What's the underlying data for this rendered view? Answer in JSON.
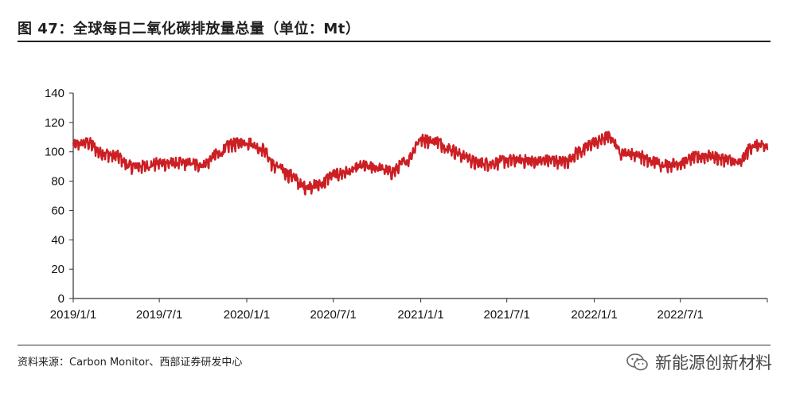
{
  "title": "图 47：全球每日二氧化碳排放量总量（单位：Mt）",
  "source": "资料来源：Carbon Monitor、西部证券研发中心",
  "watermark": {
    "text": "新能源创新材料",
    "icon": "wechat-icon"
  },
  "colors": {
    "series": "#cc1f24",
    "axis": "#333333"
  },
  "chart_data": {
    "type": "line",
    "title": "",
    "xlabel": "",
    "ylabel": "",
    "ylim": [
      0,
      140
    ],
    "yticks": [
      0,
      20,
      40,
      60,
      80,
      100,
      120,
      140
    ],
    "xlim": [
      "2019-01-01",
      "2022-12-31"
    ],
    "xticks": [
      "2019/1/1",
      "2019/7/1",
      "2020/1/1",
      "2020/7/1",
      "2021/1/1",
      "2021/7/1",
      "2022/1/1",
      "2022/7/1"
    ],
    "grid": false,
    "legend": "none",
    "series": [
      {
        "name": "",
        "resolution": "approximate monthly levels read from chart",
        "x": [
          "2019-01-01",
          "2019-02-01",
          "2019-03-01",
          "2019-04-01",
          "2019-05-01",
          "2019-06-01",
          "2019-07-01",
          "2019-08-01",
          "2019-09-01",
          "2019-10-01",
          "2019-11-01",
          "2019-12-01",
          "2020-01-01",
          "2020-02-01",
          "2020-03-01",
          "2020-04-01",
          "2020-05-01",
          "2020-06-01",
          "2020-07-01",
          "2020-08-01",
          "2020-09-01",
          "2020-10-01",
          "2020-11-01",
          "2020-12-01",
          "2021-01-01",
          "2021-02-01",
          "2021-03-01",
          "2021-04-01",
          "2021-05-01",
          "2021-06-01",
          "2021-07-01",
          "2021-08-01",
          "2021-09-01",
          "2021-10-01",
          "2021-11-01",
          "2021-12-01",
          "2022-01-01",
          "2022-02-01",
          "2022-03-01",
          "2022-04-01",
          "2022-05-01",
          "2022-06-01",
          "2022-07-01",
          "2022-08-01",
          "2022-09-01",
          "2022-10-01",
          "2022-11-01",
          "2022-12-01",
          "2022-12-31"
        ],
        "y": [
          104,
          106,
          99,
          97,
          90,
          90,
          92,
          92,
          92,
          91,
          98,
          105,
          106,
          102,
          90,
          84,
          76,
          77,
          84,
          86,
          90,
          89,
          86,
          93,
          108,
          107,
          102,
          97,
          92,
          92,
          94,
          94,
          93,
          94,
          93,
          100,
          106,
          110,
          99,
          98,
          93,
          91,
          92,
          96,
          97,
          95,
          92,
          104,
          103
        ]
      }
    ]
  }
}
